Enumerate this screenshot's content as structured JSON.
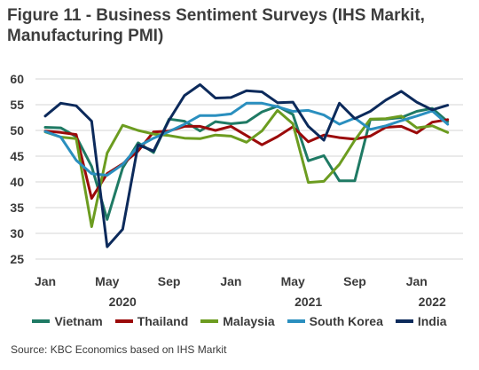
{
  "figure": {
    "title_line1": "Figure 11 - Business Sentiment Surveys (IHS Markit,",
    "title_line2": "Manufacturing PMI)",
    "source": "Source: KBC Economics based on IHS Markit"
  },
  "chart_data": {
    "type": "line",
    "title": "Figure 11 - Business Sentiment Surveys (IHS Markit, Manufacturing PMI)",
    "x": [
      "2020-01",
      "2020-02",
      "2020-03",
      "2020-04",
      "2020-05",
      "2020-06",
      "2020-07",
      "2020-08",
      "2020-09",
      "2020-10",
      "2020-11",
      "2020-12",
      "2021-01",
      "2021-02",
      "2021-03",
      "2021-04",
      "2021-05",
      "2021-06",
      "2021-07",
      "2021-08",
      "2021-09",
      "2021-10",
      "2021-11",
      "2021-12",
      "2022-01",
      "2022-02",
      "2022-03"
    ],
    "x_tick_labels": [
      "Jan",
      "May",
      "Sep",
      "Jan",
      "May",
      "Sep",
      "Jan"
    ],
    "x_tick_months": [
      "2020-01",
      "2020-05",
      "2020-09",
      "2021-01",
      "2021-05",
      "2021-09",
      "2022-01"
    ],
    "year_labels": [
      {
        "label": "2020",
        "month": "2020-06"
      },
      {
        "label": "2021",
        "month": "2021-06"
      },
      {
        "label": "2022",
        "month": "2022-02"
      }
    ],
    "ylim": [
      25,
      60
    ],
    "y_ticks": [
      25,
      30,
      35,
      40,
      45,
      50,
      55,
      60
    ],
    "grid": "horizontal",
    "legend_position": "bottom",
    "series": [
      {
        "name": "Vietnam",
        "color": "#1f7a64",
        "values": [
          50.6,
          50.5,
          48.8,
          43.0,
          32.7,
          42.7,
          47.6,
          45.7,
          52.2,
          51.8,
          49.9,
          51.7,
          51.3,
          51.6,
          53.6,
          54.7,
          53.1,
          44.1,
          45.1,
          40.2,
          40.2,
          52.1,
          52.2,
          52.5,
          53.7,
          54.3,
          51.7
        ]
      },
      {
        "name": "Thailand",
        "color": "#9b0a0a",
        "values": [
          49.9,
          49.6,
          49.2,
          36.8,
          41.6,
          43.5,
          46.0,
          49.7,
          49.9,
          50.8,
          50.8,
          50.0,
          50.8,
          49.0,
          47.2,
          48.8,
          50.7,
          47.8,
          49.1,
          48.6,
          48.3,
          48.9,
          50.6,
          50.8,
          49.5,
          51.6,
          52.1
        ]
      },
      {
        "name": "Malaysia",
        "color": "#6c9c20",
        "values": [
          49.7,
          48.7,
          48.4,
          31.3,
          45.6,
          51.0,
          50.0,
          49.3,
          49.0,
          48.5,
          48.4,
          49.1,
          48.9,
          47.7,
          49.9,
          53.9,
          51.3,
          39.9,
          40.1,
          43.4,
          48.1,
          52.2,
          52.3,
          52.8,
          50.5,
          50.9,
          49.6
        ]
      },
      {
        "name": "South Korea",
        "color": "#2a8fbf",
        "values": [
          49.8,
          48.7,
          44.2,
          41.6,
          41.3,
          43.4,
          46.9,
          48.5,
          49.8,
          51.2,
          52.9,
          52.9,
          53.2,
          55.3,
          55.3,
          54.6,
          53.7,
          53.9,
          53.0,
          51.2,
          52.4,
          50.2,
          50.9,
          51.9,
          52.8,
          53.8,
          51.2
        ]
      },
      {
        "name": "India",
        "color": "#0c2a5b",
        "values": [
          52.8,
          55.3,
          54.8,
          51.8,
          27.4,
          30.8,
          47.2,
          46.0,
          52.0,
          56.8,
          58.9,
          56.3,
          56.4,
          57.7,
          57.5,
          55.4,
          55.5,
          50.8,
          48.1,
          55.3,
          52.3,
          53.7,
          55.9,
          57.6,
          55.5,
          54.0,
          54.9
        ]
      }
    ]
  }
}
